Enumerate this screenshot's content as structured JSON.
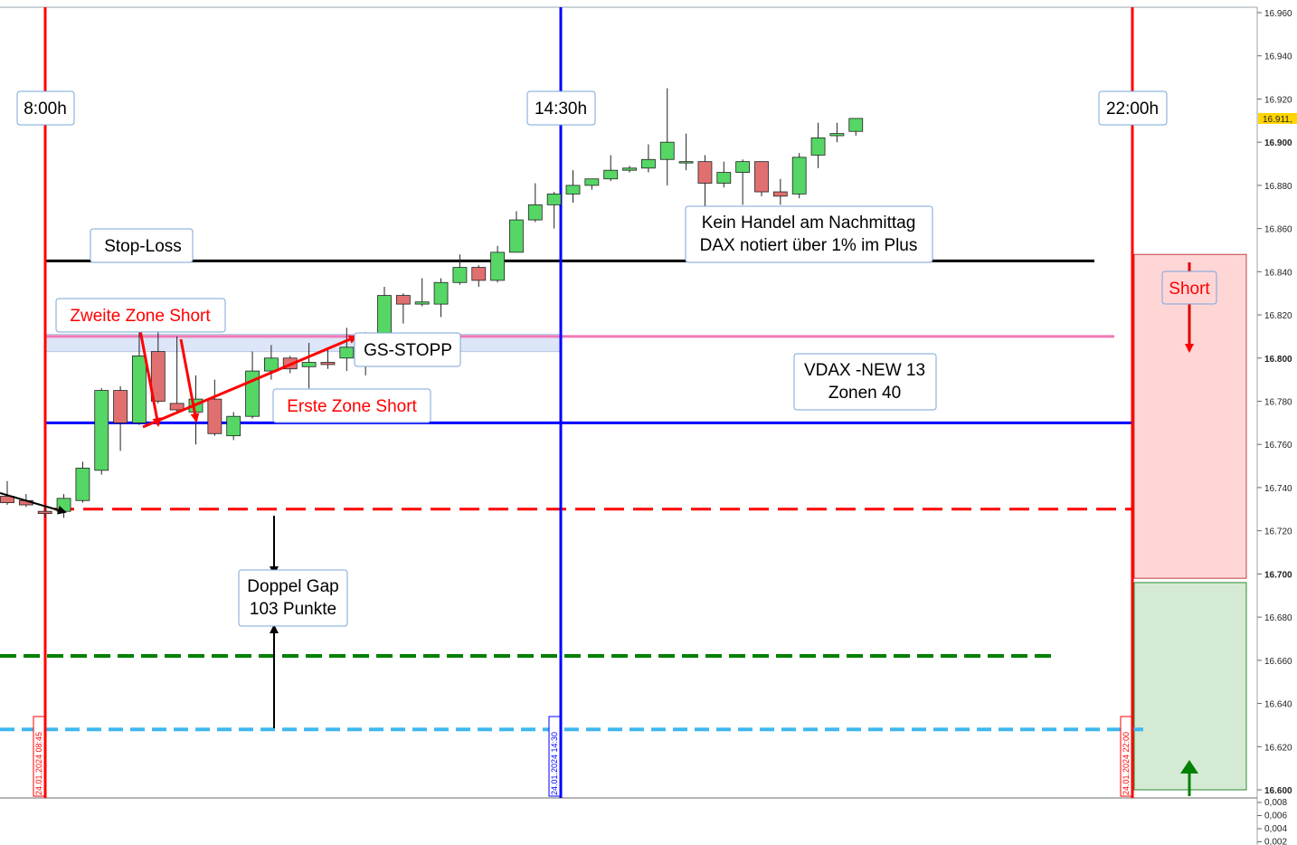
{
  "chart_data": {
    "type": "candlestick",
    "title": "",
    "xlabel": "",
    "ylabel": "",
    "ylim": [
      16600,
      16960
    ],
    "y_ticks": [
      16960,
      16940,
      16920,
      16900,
      16880,
      16860,
      16840,
      16820,
      16800,
      16780,
      16760,
      16740,
      16720,
      16700,
      16680,
      16660,
      16640,
      16620,
      16600
    ],
    "y_tick_labels": [
      "16.960",
      "16.940",
      "16.920",
      "16.900",
      "16.880",
      "16.860",
      "16.840",
      "16.820",
      "16.800",
      "16.780",
      "16.760",
      "16.740",
      "16.720",
      "16.700",
      "16.680",
      "16.660",
      "16.640",
      "16.620",
      "16.600"
    ],
    "bold_ticks": [
      16900,
      16800,
      16700,
      16600
    ],
    "current_price": 16911,
    "current_price_label": "16.911,",
    "sub_axis_labels": [
      "0,008",
      "0,006",
      "0,004",
      "0,002"
    ],
    "candles": [
      {
        "o": 16736,
        "h": 16743,
        "c": 16733,
        "l": 16732
      },
      {
        "o": 16734,
        "h": 16737,
        "c": 16732,
        "l": 16731
      },
      {
        "o": 16729,
        "h": 16731,
        "c": 16728,
        "l": 16726
      },
      {
        "o": 16729,
        "h": 16737,
        "c": 16735,
        "l": 16726
      },
      {
        "o": 16734,
        "h": 16752,
        "c": 16749,
        "l": 16733
      },
      {
        "o": 16748,
        "h": 16786,
        "c": 16785,
        "l": 16746
      },
      {
        "o": 16785,
        "h": 16787,
        "c": 16770,
        "l": 16757
      },
      {
        "o": 16770,
        "h": 16818,
        "c": 16801,
        "l": 16769
      },
      {
        "o": 16803,
        "h": 16820,
        "c": 16780,
        "l": 16779
      },
      {
        "o": 16779,
        "h": 16810,
        "c": 16776,
        "l": 16775
      },
      {
        "o": 16775,
        "h": 16792,
        "c": 16781,
        "l": 16760
      },
      {
        "o": 16781,
        "h": 16790,
        "c": 16765,
        "l": 16764
      },
      {
        "o": 16764,
        "h": 16775,
        "c": 16773,
        "l": 16762
      },
      {
        "o": 16773,
        "h": 16803,
        "c": 16794,
        "l": 16772
      },
      {
        "o": 16794,
        "h": 16806,
        "c": 16800,
        "l": 16790
      },
      {
        "o": 16800,
        "h": 16801,
        "c": 16795,
        "l": 16793
      },
      {
        "o": 16796,
        "h": 16807,
        "c": 16798,
        "l": 16786
      },
      {
        "o": 16798,
        "h": 16805,
        "c": 16797,
        "l": 16795
      },
      {
        "o": 16800,
        "h": 16814,
        "c": 16805,
        "l": 16794
      },
      {
        "o": 16805,
        "h": 16812,
        "c": 16811,
        "l": 16792
      },
      {
        "o": 16811,
        "h": 16833,
        "c": 16829,
        "l": 16809
      },
      {
        "o": 16829,
        "h": 16830,
        "c": 16825,
        "l": 16816
      },
      {
        "o": 16825,
        "h": 16837,
        "c": 16826,
        "l": 16824
      },
      {
        "o": 16825,
        "h": 16837,
        "c": 16835,
        "l": 16819
      },
      {
        "o": 16835,
        "h": 16848,
        "c": 16842,
        "l": 16834
      },
      {
        "o": 16842,
        "h": 16843,
        "c": 16836,
        "l": 16833
      },
      {
        "o": 16836,
        "h": 16852,
        "c": 16849,
        "l": 16835
      },
      {
        "o": 16849,
        "h": 16868,
        "c": 16864,
        "l": 16849
      },
      {
        "o": 16864,
        "h": 16881,
        "c": 16871,
        "l": 16863
      },
      {
        "o": 16871,
        "h": 16877,
        "c": 16876,
        "l": 16860
      },
      {
        "o": 16876,
        "h": 16887,
        "c": 16880,
        "l": 16872
      },
      {
        "o": 16880,
        "h": 16883,
        "c": 16883,
        "l": 16878
      },
      {
        "o": 16883,
        "h": 16894,
        "c": 16887,
        "l": 16882
      },
      {
        "o": 16887,
        "h": 16889,
        "c": 16888,
        "l": 16886
      },
      {
        "o": 16888,
        "h": 16899,
        "c": 16892,
        "l": 16886
      },
      {
        "o": 16892,
        "h": 16925,
        "c": 16900,
        "l": 16880
      },
      {
        "o": 16891,
        "h": 16904,
        "c": 16891,
        "l": 16887
      },
      {
        "o": 16891,
        "h": 16894,
        "c": 16881,
        "l": 16867
      },
      {
        "o": 16881,
        "h": 16891,
        "c": 16886,
        "l": 16879
      },
      {
        "o": 16886,
        "h": 16892,
        "c": 16891,
        "l": 16871
      },
      {
        "o": 16891,
        "h": 16891,
        "c": 16877,
        "l": 16875
      },
      {
        "o": 16877,
        "h": 16883,
        "c": 16875,
        "l": 16871
      },
      {
        "o": 16876,
        "h": 16895,
        "c": 16893,
        "l": 16874
      },
      {
        "o": 16894,
        "h": 16909,
        "c": 16902,
        "l": 16888
      },
      {
        "o": 16903,
        "h": 16909,
        "c": 16904,
        "l": 16900
      },
      {
        "o": 16905,
        "h": 16911,
        "c": 16911,
        "l": 16903
      }
    ],
    "hlines": [
      {
        "name": "stop-loss-line",
        "value": 16845,
        "color": "#000000"
      },
      {
        "name": "gs-stopp-line",
        "value": 16810,
        "color": "#f07ab4"
      },
      {
        "name": "blue-level-line",
        "value": 16770,
        "color": "#0000ff"
      },
      {
        "name": "red-gap-line",
        "value": 16730,
        "color": "#ff0000"
      },
      {
        "name": "green-gap-line",
        "value": 16662,
        "color": "#008000"
      },
      {
        "name": "lightblue-gap-line",
        "value": 16628,
        "color": "#3fb8ef"
      }
    ],
    "zone": {
      "top": 16811,
      "bottom": 16803,
      "color": "#dce6f8"
    },
    "short_box": {
      "top": 16848,
      "bottom": 16698,
      "color": "#ffd6d6"
    },
    "long_box": {
      "top": 16696,
      "bottom": 16600,
      "color": "#d4ead4"
    },
    "colors": {
      "bull": "#55d665",
      "bear": "#e07070",
      "red": "#ff0000",
      "blue": "#0000ff"
    }
  },
  "labels": {
    "time_8": "8:00h",
    "time_1430": "14:30h",
    "time_22": "22:00h",
    "stop_loss": "Stop-Loss",
    "zweite_zone": "Zweite Zone Short",
    "gs_stopp": "GS-STOPP",
    "erste_zone": "Erste Zone Short",
    "kein_handel_1": "Kein Handel am Nachmittag",
    "kein_handel_2": "DAX notiert über 1% im Plus",
    "vdax_1": "VDAX -NEW 13",
    "vdax_2": "Zonen 40",
    "doppel_gap_1": "Doppel Gap",
    "doppel_gap_2": "103 Punkte",
    "short": "Short",
    "date_8": "24.01.2024 08:45",
    "date_1430": "24.01.2024 14:30",
    "date_22": "24.01.2024 22:00"
  }
}
